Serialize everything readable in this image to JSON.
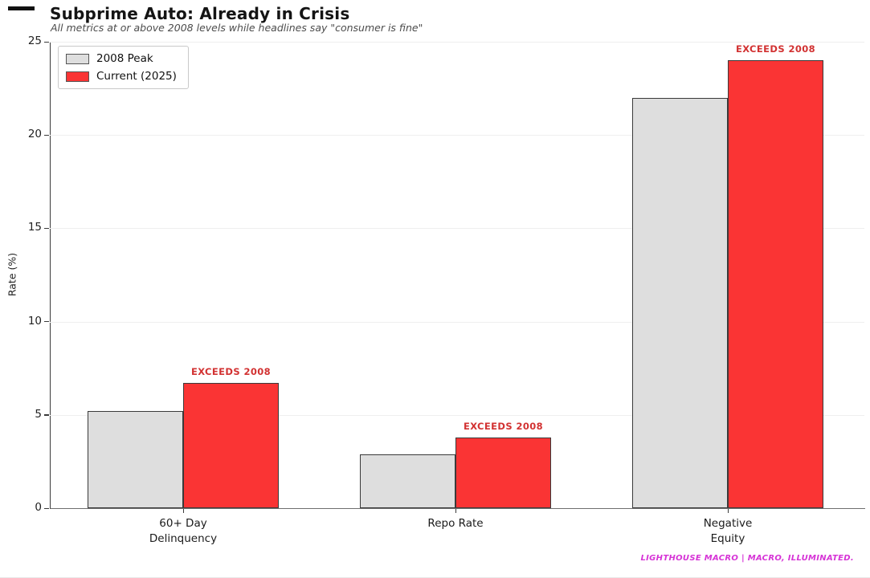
{
  "chart_data": {
    "type": "bar",
    "title": "Subprime Auto: Already in Crisis",
    "subtitle": "All metrics at or above 2008 levels while headlines say \"consumer is fine\"",
    "categories": [
      "60+ Day\nDelinquency",
      "Repo Rate",
      "Negative\nEquity"
    ],
    "series": [
      {
        "name": "2008 Peak",
        "color": "#dedede",
        "edge_color": "#3a3a3a",
        "values": [
          5.2,
          2.9,
          22.0
        ]
      },
      {
        "name": "Current (2025)",
        "color": "#fa3434",
        "edge_color": "#3a3a3a",
        "values": [
          6.7,
          3.8,
          24.0
        ]
      }
    ],
    "xlabel": "",
    "ylabel": "Rate (%)",
    "ylim": [
      0,
      25
    ],
    "yticks": [
      0,
      5,
      10,
      15,
      20,
      25
    ],
    "grid": true,
    "legend_position": "upper left",
    "annotations": [
      {
        "text": "EXCEEDS 2008",
        "category_index": 0,
        "series": "Current (2025)",
        "color": "#d23232"
      },
      {
        "text": "EXCEEDS 2008",
        "category_index": 1,
        "series": "Current (2025)",
        "color": "#d23232"
      },
      {
        "text": "EXCEEDS 2008",
        "category_index": 2,
        "series": "Current (2025)",
        "color": "#d23232"
      }
    ]
  },
  "footer": {
    "credit": "LIGHTHOUSE MACRO | MACRO, ILLUMINATED.",
    "color": "#d633d6"
  }
}
